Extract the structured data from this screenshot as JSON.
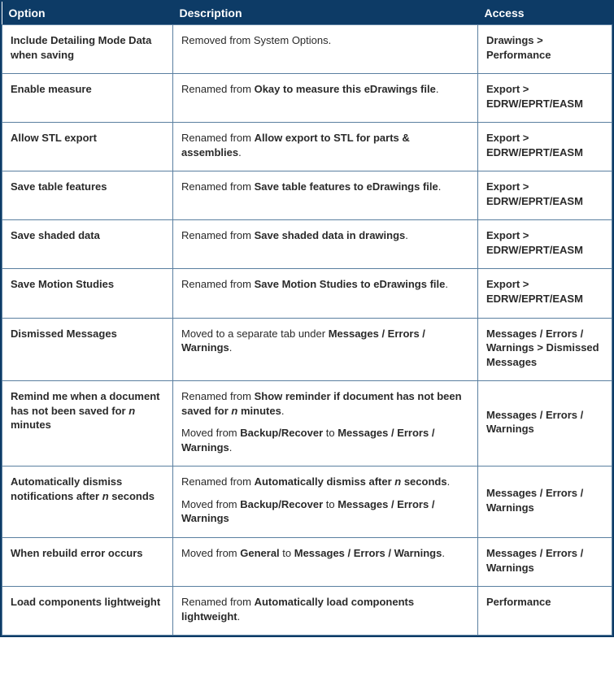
{
  "columns": [
    "Option",
    "Description",
    "Access"
  ],
  "col_widths_pct": [
    28,
    50,
    22
  ],
  "header_bg": "#0d3b66",
  "header_fg": "#ffffff",
  "border_color": "#5a7fa0",
  "font_family": "Verdana, Geneva, sans-serif",
  "header_fontsize": 14,
  "cell_fontsize": 13,
  "rows": [
    {
      "option_html": "Include Detailing Mode Data when saving",
      "description_html": [
        "Removed from System Options."
      ],
      "access_html": "Drawings > Performance"
    },
    {
      "option_html": "Enable measure",
      "description_html": [
        "Renamed from <b>Okay to measure this eDrawings file</b>."
      ],
      "access_html": "Export > EDRW/EPRT/EASM"
    },
    {
      "option_html": "Allow STL export",
      "description_html": [
        "Renamed from <b>Allow export to STL for parts &amp; assemblies</b>."
      ],
      "access_html": "Export > EDRW/EPRT/EASM"
    },
    {
      "option_html": "Save table features",
      "description_html": [
        "Renamed from <b>Save table features to eDrawings file</b>."
      ],
      "access_html": "Export > EDRW/EPRT/EASM"
    },
    {
      "option_html": "Save shaded data",
      "description_html": [
        "Renamed from <b>Save shaded data in drawings</b>."
      ],
      "access_html": "Export > EDRW/EPRT/EASM"
    },
    {
      "option_html": "Save Motion Studies",
      "description_html": [
        "Renamed from <b>Save Motion Studies to eDrawings file</b>."
      ],
      "access_html": "Export > EDRW/EPRT/EASM"
    },
    {
      "option_html": "Dismissed Messages",
      "description_html": [
        "Moved to a separate tab under <b>Messages / Errors / Warnings</b>."
      ],
      "access_html": "Messages / Errors / Warnings > Dismissed Messages"
    },
    {
      "option_html": "Remind me when a document has not been saved for <i>n</i> minutes",
      "description_html": [
        "Renamed from <b>Show reminder if document has not been saved for <i>n</i> minutes</b>.",
        "Moved from <b>Backup/Recover</b> to <b>Messages / Errors / Warnings</b>."
      ],
      "access_html": "Messages / Errors / Warnings"
    },
    {
      "option_html": "Automatically dismiss notifications after <i>n</i> seconds",
      "description_html": [
        "Renamed from <b>Automatically dismiss after <i>n</i> seconds</b>.",
        "Moved from <b>Backup/Recover</b> to <b>Messages / Errors / Warnings</b>"
      ],
      "access_html": "Messages / Errors / Warnings"
    },
    {
      "option_html": "When rebuild error occurs",
      "description_html": [
        "Moved from <b>General</b> to <b>Messages / Errors / Warnings</b>."
      ],
      "access_html": "Messages / Errors / Warnings"
    },
    {
      "option_html": "Load components lightweight",
      "description_html": [
        "Renamed from <b>Automatically load components lightweight</b>."
      ],
      "access_html": "Performance"
    }
  ]
}
